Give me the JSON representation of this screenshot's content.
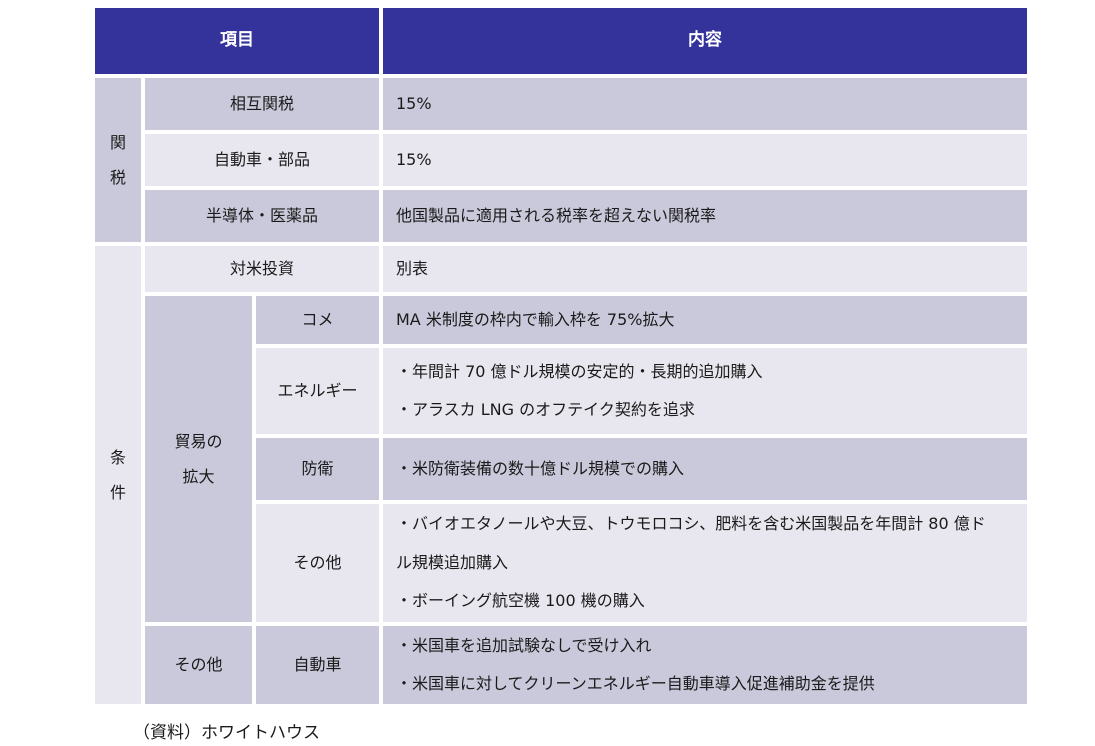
{
  "colors": {
    "header_bg": "#34339b",
    "band_dark": "#cac9db",
    "band_light": "#e8e7ef",
    "header_text": "#ffffff",
    "body_text": "#1a1a1a"
  },
  "table": {
    "header": {
      "item": "項目",
      "content": "内容"
    },
    "group_tariff": {
      "label": "関\n税"
    },
    "group_condition": {
      "label": "条\n件"
    },
    "group_trade": {
      "label": "貿易の\n拡大"
    },
    "group_other": {
      "label": "その他"
    },
    "rows": {
      "reciprocal": {
        "label": "相互関税",
        "content": "15%"
      },
      "auto_parts": {
        "label": "自動車・部品",
        "content": "15%"
      },
      "semi_pharma": {
        "label": "半導体・医薬品",
        "content": "他国製品に適用される税率を超えない関税率"
      },
      "investment": {
        "label": "対米投資",
        "content": "別表"
      },
      "rice": {
        "label": "コメ",
        "content": "MA 米制度の枠内で輸入枠を 75%拡大"
      },
      "energy": {
        "label": "エネルギー",
        "bullets": [
          "・年間計 70 億ドル規模の安定的・長期的追加購入",
          "・アラスカ LNG のオフテイク契約を追求"
        ]
      },
      "defense": {
        "label": "防衛",
        "bullets": [
          "・米防衛装備の数十億ドル規模での購入"
        ]
      },
      "other_trade": {
        "label": "その他",
        "bullets": [
          "・バイオエタノールや大豆、トウモロコシ、肥料を含む米国製品を年間計 80 億ドル規模追加購入",
          "・ボーイング航空機 100 機の購入"
        ]
      },
      "automobile": {
        "label": "自動車",
        "bullets": [
          "・米国車を追加試験なしで受け入れ",
          "・米国車に対してクリーンエネルギー自動車導入促進補助金を提供"
        ]
      }
    }
  },
  "footer": {
    "source": "（資料）ホワイトハウス"
  }
}
